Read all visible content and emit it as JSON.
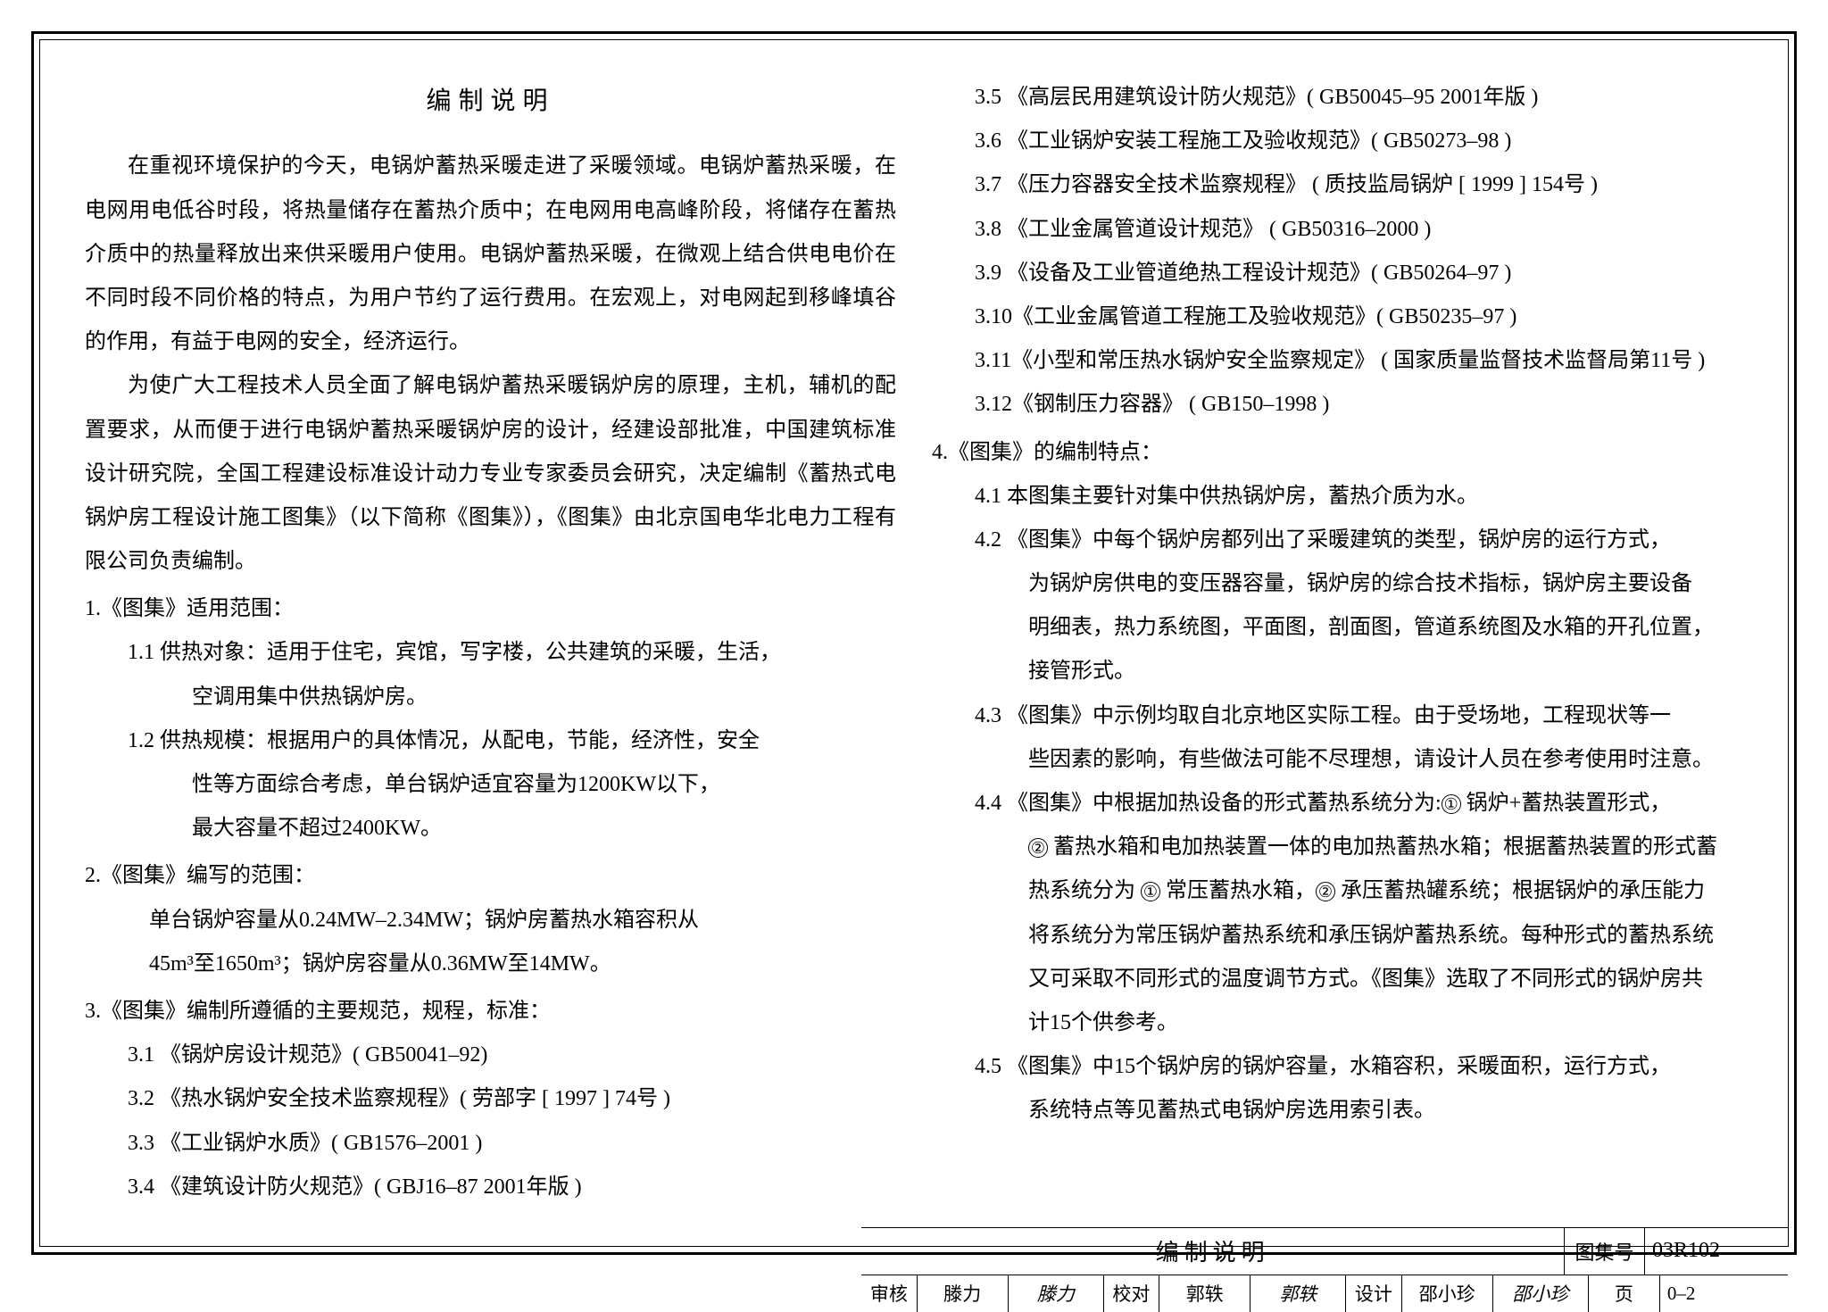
{
  "title": "编制说明",
  "leftColumn": {
    "para1": "在重视环境保护的今天，电锅炉蓄热采暖走进了采暖领域。电锅炉蓄热采暖，在电网用电低谷时段，将热量储存在蓄热介质中；在电网用电高峰阶段，将储存在蓄热介质中的热量释放出来供采暖用户使用。电锅炉蓄热采暖，在微观上结合供电电价在不同时段不同价格的特点，为用户节约了运行费用。在宏观上，对电网起到移峰填谷的作用，有益于电网的安全，经济运行。",
    "para2": "为使广大工程技术人员全面了解电锅炉蓄热采暖锅炉房的原理，主机，辅机的配置要求，从而便于进行电锅炉蓄热采暖锅炉房的设计，经建设部批准，中国建筑标准设计研究院，全国工程建设标准设计动力专业专家委员会研究，决定编制《蓄热式电锅炉房工程设计施工图集》（以下简称《图集》），《图集》由北京国电华北电力工程有限公司负责编制。",
    "s1": "1.《图集》适用范围：",
    "s1_1a": "1.1  供热对象：适用于住宅，宾馆，写字楼，公共建筑的采暖，生活，",
    "s1_1b": "空调用集中供热锅炉房。",
    "s1_2a": "1.2  供热规模：根据用户的具体情况，从配电，节能，经济性，安全",
    "s1_2b": "性等方面综合考虑，单台锅炉适宜容量为1200KW以下，",
    "s1_2c": "最大容量不超过2400KW。",
    "s2": "2.《图集》编写的范围：",
    "s2_a": "单台锅炉容量从0.24MW–2.34MW；锅炉房蓄热水箱容积从",
    "s2_b": "45m³至1650m³；锅炉房容量从0.36MW至14MW。",
    "s3": "3.《图集》编制所遵循的主要规范，规程，标准：",
    "s3_1": "3.1 《锅炉房设计规范》( GB50041–92)",
    "s3_2": "3.2 《热水锅炉安全技术监察规程》( 劳部字 [ 1997 ] 74号 )",
    "s3_3": "3.3 《工业锅炉水质》( GB1576–2001 )",
    "s3_4": "3.4 《建筑设计防火规范》( GBJ16–87  2001年版 )"
  },
  "rightColumn": {
    "s3_5": "3.5 《高层民用建筑设计防火规范》( GB50045–95  2001年版 )",
    "s3_6": "3.6 《工业锅炉安装工程施工及验收规范》( GB50273–98 )",
    "s3_7": "3.7 《压力容器安全技术监察规程》  ( 质技监局锅炉 [ 1999 ] 154号 )",
    "s3_8": "3.8 《工业金属管道设计规范》  ( GB50316–2000 )",
    "s3_9": "3.9 《设备及工业管道绝热工程设计规范》( GB50264–97 )",
    "s3_10": "3.10《工业金属管道工程施工及验收规范》( GB50235–97 )",
    "s3_11": "3.11《小型和常压热水锅炉安全监察规定》    ( 国家质量监督技术监督局第11号 )",
    "s3_12": "3.12《钢制压力容器》  ( GB150–1998 )",
    "s4": "4.《图集》的编制特点：",
    "s4_1": "4.1  本图集主要针对集中供热锅炉房，蓄热介质为水。",
    "s4_2a": "4.2 《图集》中每个锅炉房都列出了采暖建筑的类型，锅炉房的运行方式，",
    "s4_2b": "为锅炉房供电的变压器容量，锅炉房的综合技术指标，锅炉房主要设备",
    "s4_2c": "明细表，热力系统图，平面图，剖面图，管道系统图及水箱的开孔位置，",
    "s4_2d": "接管形式。",
    "s4_3a": "4.3 《图集》中示例均取自北京地区实际工程。由于受场地，工程现状等一",
    "s4_3b": "些因素的影响，有些做法可能不尽理想，请设计人员在参考使用时注意。",
    "s4_4a_pre": "4.4 《图集》中根据加热设备的形式蓄热系统分为:",
    "s4_4a_c1": "①",
    "s4_4a_post": " 锅炉+蓄热装置形式，",
    "s4_4b_c2": "②",
    "s4_4b_mid": " 蓄热水箱和电加热装置一体的电加热蓄热水箱；根据蓄热装置的形式蓄",
    "s4_4c_pre": "热系统分为 ",
    "s4_4c_c1": "①",
    "s4_4c_mid": " 常压蓄热水箱，",
    "s4_4c_c2": "②",
    "s4_4c_post": " 承压蓄热罐系统；根据锅炉的承压能力",
    "s4_4d": "将系统分为常压锅炉蓄热系统和承压锅炉蓄热系统。每种形式的蓄热系统",
    "s4_4e": "又可采取不同形式的温度调节方式。《图集》选取了不同形式的锅炉房共",
    "s4_4f": "计15个供参考。",
    "s4_5a": "4.5 《图集》中15个锅炉房的锅炉容量，水箱容积，采暖面积，运行方式，",
    "s4_5b": "系统特点等见蓄热式电锅炉房选用索引表。"
  },
  "titleBlock": {
    "mainTitle": "编制说明",
    "codeLabel": "图集号",
    "code": "03R102",
    "reviewLabel": "审核",
    "reviewName": "滕力",
    "reviewSig": "滕力",
    "checkLabel": "校对",
    "checkName": "郭轶",
    "checkSig": "郭轶",
    "designLabel": "设计",
    "designName": "邵小珍",
    "designSig": "邵小珍",
    "pageLabel": "页",
    "page": "0–2"
  }
}
